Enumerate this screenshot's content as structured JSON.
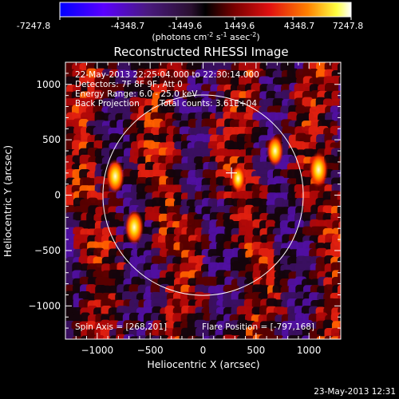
{
  "colorbar": {
    "ticks": [
      "-7247.8",
      "-4348.7",
      "-1449.6",
      "1449.6",
      "4348.7",
      "7247.8"
    ],
    "unit_main": "(photons cm",
    "unit_exp1": "-2",
    "unit_mid": " s",
    "unit_exp2": "-1",
    "unit_end": " asec",
    "unit_exp3": "-2",
    "unit_close": ")"
  },
  "chart_data": {
    "type": "heatmap",
    "title": "Reconstructed RHESSI Image",
    "xlabel": "Heliocentric X (arcsec)",
    "ylabel": "Heliocentric Y (arcsec)",
    "xlim": [
      -1300,
      1300
    ],
    "ylim": [
      -1300,
      1200
    ],
    "x_ticks": [
      -1000,
      -500,
      0,
      500,
      1000
    ],
    "y_ticks": [
      -1000,
      -500,
      0,
      500,
      1000
    ],
    "colorbar_range": [
      -7247.8,
      7247.8
    ],
    "annotations": [
      "22-May-2013 22:25:04.000 to 22:30:14.000",
      "Detectors: 7F 8F 9F, Att 0",
      "Energy Range: 6.0 - 25.0 keV",
      "Back Projection",
      "Total counts: 3.61E+04"
    ],
    "spin_axis": "Spin Axis = [268,201]",
    "flare_position": "Flare Position = [-797,168]",
    "solar_disk_center": [
      0,
      0
    ],
    "solar_disk_radius": 946,
    "crosshair": [
      268,
      201
    ],
    "bright_sources": [
      {
        "x": 1090,
        "y": 230,
        "value": 7000
      },
      {
        "x": 680,
        "y": 400,
        "value": 5200
      },
      {
        "x": -830,
        "y": 170,
        "value": 6500
      },
      {
        "x": -650,
        "y": -290,
        "value": 6800
      },
      {
        "x": 330,
        "y": 150,
        "value": 3500
      }
    ]
  },
  "footer": {
    "timestamp": "23-May-2013 12:31"
  }
}
